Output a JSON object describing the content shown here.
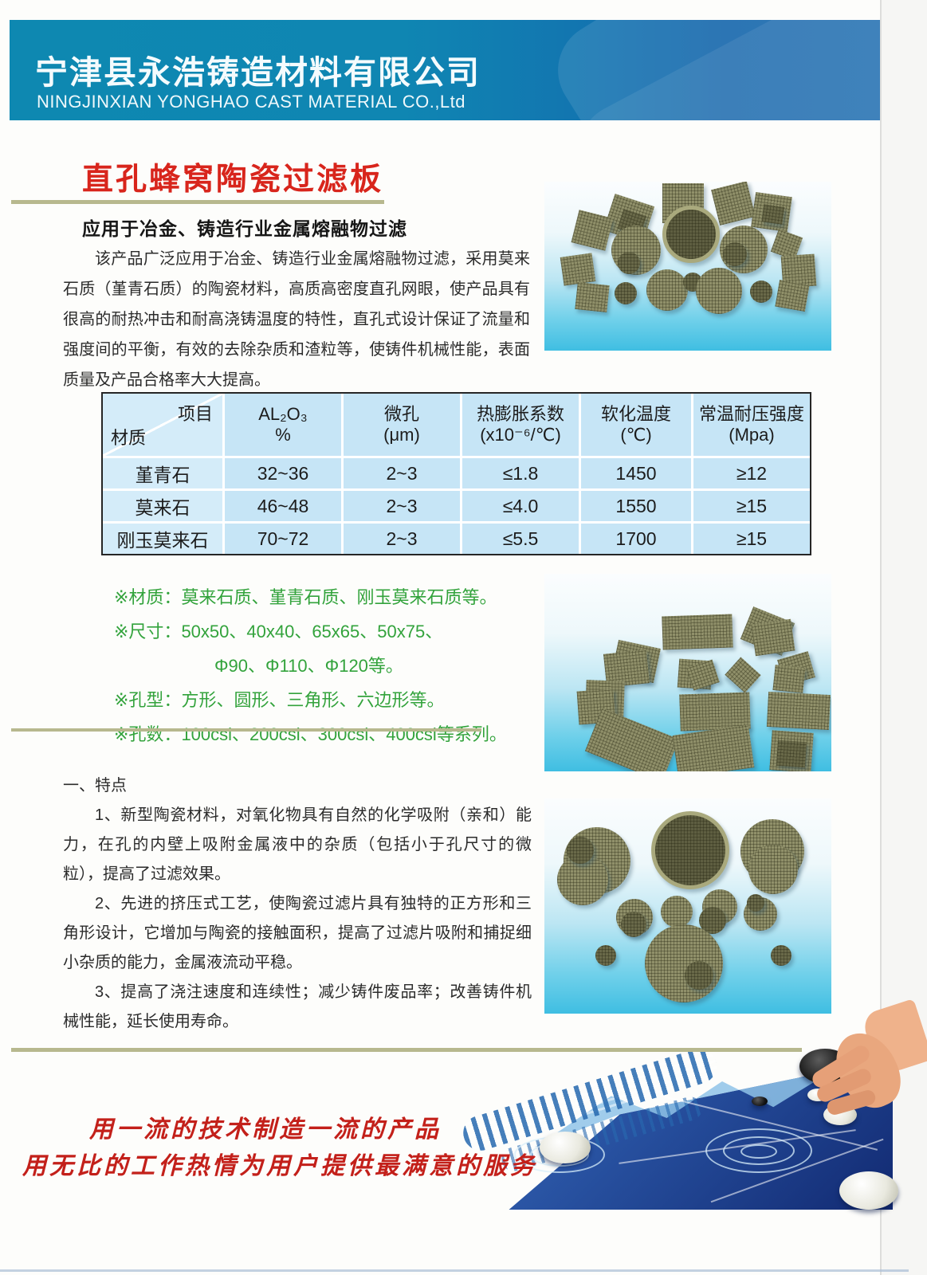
{
  "header": {
    "company_cn": "宁津县永浩铸造材料有限公司",
    "company_en": "NINGJINXIAN YONGHAO CAST MATERIAL CO.,Ltd"
  },
  "product": {
    "title": "直孔蜂窝陶瓷过滤板",
    "subtitle": "应用于冶金、铸造行业金属熔融物过滤",
    "description": "该产品广泛应用于冶金、铸造行业金属熔融物过滤，采用莫来石质（堇青石质）的陶瓷材料，高质高密度直孔网眼，使产品具有很高的耐热冲击和耐高浇铸温度的特性，直孔式设计保证了流量和强度间的平衡，有效的去除杂质和渣粒等，使铸件机械性能，表面质量及产品合格率大大提高。"
  },
  "spec_table": {
    "corner_top": "项目",
    "corner_bottom": "材质",
    "columns": [
      {
        "title": "AL₂O₃",
        "unit": "%"
      },
      {
        "title": "微孔",
        "unit": "(μm)"
      },
      {
        "title": "热膨胀系数",
        "unit": "(x10⁻⁶/℃)"
      },
      {
        "title": "软化温度",
        "unit": "(℃)"
      },
      {
        "title": "常温耐压强度",
        "unit": "(Mpa)"
      }
    ],
    "rows": [
      {
        "material": "堇青石",
        "cells": [
          "32~36",
          "2~3",
          "≤1.8",
          "1450",
          "≥12"
        ]
      },
      {
        "material": "莫来石",
        "cells": [
          "46~48",
          "2~3",
          "≤4.0",
          "1550",
          "≥15"
        ]
      },
      {
        "material": "刚玉莫来石",
        "cells": [
          "70~72",
          "2~3",
          "≤5.5",
          "1700",
          "≥15"
        ]
      }
    ]
  },
  "specs": {
    "lines": [
      {
        "label": "※材质：",
        "value": "莫来石质、堇青石质、刚玉莫来石质等。"
      },
      {
        "label": "※尺寸：",
        "value": "50x50、40x40、65x65、50x75、"
      },
      {
        "label": "",
        "value": "Φ90、Φ110、Φ120等。"
      },
      {
        "label": "※孔型：",
        "value": "方形、圆形、三角形、六边形等。"
      },
      {
        "label": "※孔数：",
        "value": "100csi、200csi、300csi、400csi等系列。"
      }
    ]
  },
  "features": {
    "heading": "一、特点",
    "items": [
      "1、新型陶瓷材料，对氧化物具有自然的化学吸附（亲和）能力，在孔的内壁上吸附金属液中的杂质（包括小于孔尺寸的微粒），提高了过滤效果。",
      "2、先进的挤压式工艺，使陶瓷过滤片具有独特的正方形和三角形设计，它增加与陶瓷的接触面积，提高了过滤片吸附和捕捉细小杂质的能力，金属液流动平稳。",
      "3、提高了浇注速度和连续性；减少铸件废品率；改善铸件机械性能，延长使用寿命。"
    ]
  },
  "slogan": {
    "line1": "用一流的技术制造一流的产品",
    "line2": "用无比的工作热情为用户提供最满意的服务"
  },
  "photos": {
    "top": "ceramic-filter-plates-arc",
    "middle": "ceramic-filter-rectangular-plates",
    "bottom": "ceramic-filter-round-discs"
  },
  "colors": {
    "title_red": "#d8251c",
    "slogan_red": "#c3201a",
    "spec_green": "#33a33c",
    "header_teal": "#0e88b1",
    "header_blue": "#1566ac",
    "table_cell_blue": "#c6e5f6",
    "divider_olive": "#b7b88e"
  }
}
